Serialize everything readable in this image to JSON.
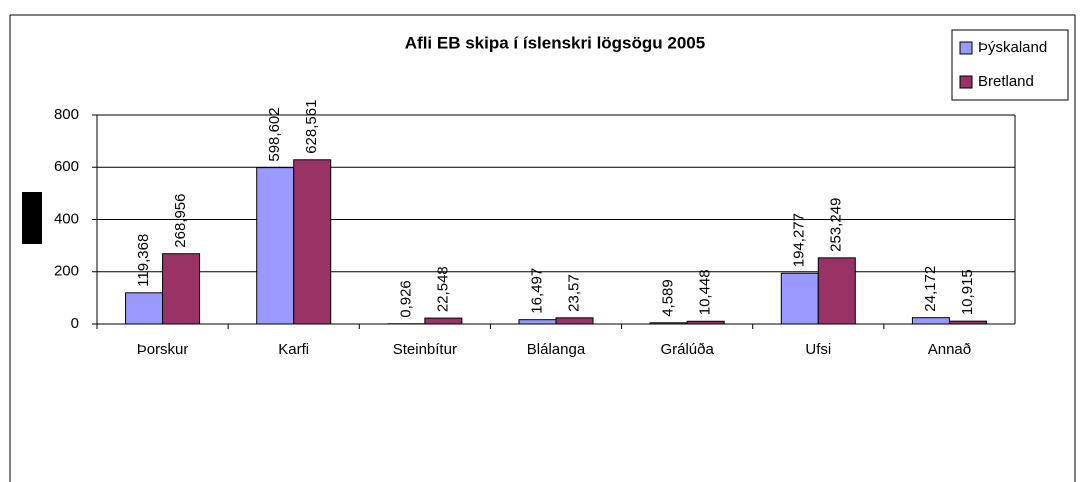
{
  "chart_data": {
    "type": "bar",
    "title": "Afli EB skipa í íslenskri lögsögu 2005",
    "categories": [
      "Þorskur",
      "Karfi",
      "Steinbítur",
      "Blálanga",
      "Grálúða",
      "Ufsi",
      "Annað"
    ],
    "series": [
      {
        "name": "Þýskaland",
        "color": "#9999ff",
        "values": [
          119.368,
          598.602,
          0.926,
          16.497,
          4.589,
          194.277,
          24.172
        ],
        "value_labels": [
          "119,368",
          "598,602",
          "0,926",
          "16,497",
          "4,589",
          "194,277",
          "24,172"
        ]
      },
      {
        "name": "Bretland",
        "color": "#993366",
        "values": [
          268.956,
          628.561,
          22.548,
          23.57,
          10.448,
          253.249,
          10.915
        ],
        "value_labels": [
          "268,956",
          "628,561",
          "22,548",
          "23,57",
          "10,448",
          "253,249",
          "10,915"
        ]
      }
    ],
    "ylim": [
      0,
      800
    ],
    "yticks": [
      0,
      200,
      400,
      600,
      800
    ],
    "grid": true,
    "legend": "top-right"
  }
}
